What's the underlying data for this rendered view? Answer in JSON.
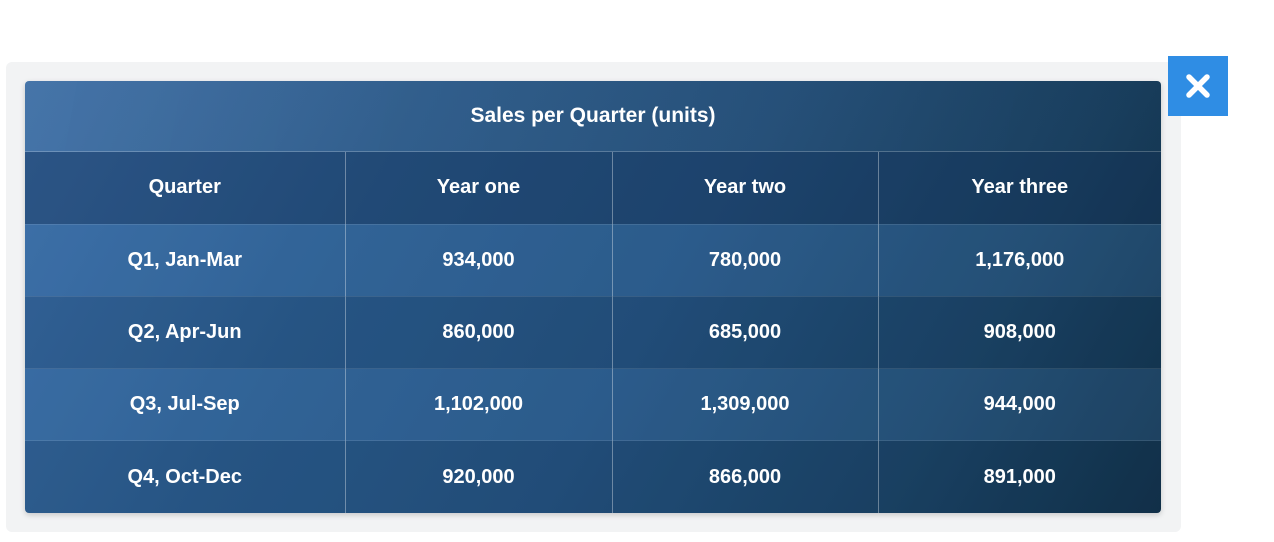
{
  "table": {
    "title": "Sales per Quarter (units)",
    "columns": [
      "Quarter",
      "Year one",
      "Year two",
      "Year three"
    ],
    "rows": [
      [
        "Q1, Jan-Mar",
        "934,000",
        "780,000",
        "1,176,000"
      ],
      [
        "Q2, Apr-Jun",
        "860,000",
        "685,000",
        "908,000"
      ],
      [
        "Q3, Jul-Sep",
        "1,102,000",
        "1,309,000",
        "944,000"
      ],
      [
        "Q4, Oct-Dec",
        "920,000",
        "866,000",
        "891,000"
      ]
    ]
  },
  "close_button": {
    "icon": "close-icon"
  },
  "colors": {
    "close_button_bg": "#2f8de4",
    "table_dark": "#12324a",
    "table_light": "#3a6ca4",
    "text": "#ffffff"
  }
}
